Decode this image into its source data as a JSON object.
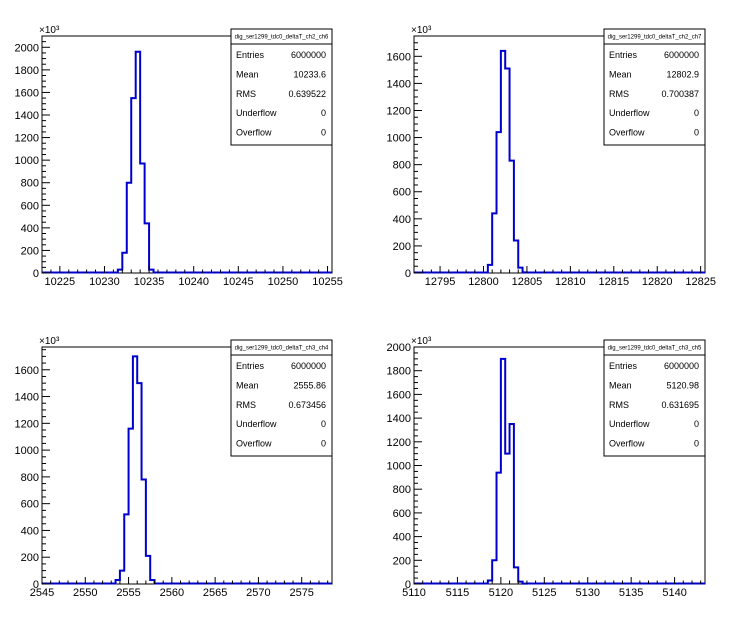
{
  "chart_data": [
    {
      "type": "histogram",
      "stats_title": "dig_ser1299_tdc0_deltaT_ch2_ch6",
      "stats": [
        {
          "label": "Entries",
          "value": "6000000"
        },
        {
          "label": "Mean",
          "value": "10233.6"
        },
        {
          "label": "RMS",
          "value": "0.639522"
        },
        {
          "label": "Underflow",
          "value": "0"
        },
        {
          "label": "Overflow",
          "value": "0"
        }
      ],
      "xlim": [
        10223,
        10255.5
      ],
      "ylim": [
        0,
        2100
      ],
      "y_multiplier_label": "×10³",
      "x_ticks": [
        10225,
        10230,
        10235,
        10240,
        10245,
        10250,
        10255
      ],
      "x_tick_labels": [
        "10225",
        "10230",
        "10235",
        "10240",
        "10245",
        "10250",
        "10255"
      ],
      "y_ticks": [
        0,
        200,
        400,
        600,
        800,
        1000,
        1200,
        1400,
        1600,
        1800,
        2000
      ],
      "y_tick_labels": [
        "0",
        "200",
        "400",
        "600",
        "800",
        "1000",
        "1200",
        "1400",
        "1600",
        "1800",
        "2000"
      ],
      "bin_edges": [
        10231.5,
        10232.0,
        10232.5,
        10233.0,
        10233.5,
        10234.0,
        10234.5,
        10235.0,
        10235.5
      ],
      "bin_values": [
        30,
        180,
        800,
        1550,
        1960,
        970,
        440,
        30
      ],
      "color": "#0000cc"
    },
    {
      "type": "histogram",
      "stats_title": "dig_ser1299_tdc0_deltaT_ch2_ch7",
      "stats": [
        {
          "label": "Entries",
          "value": "6000000"
        },
        {
          "label": "Mean",
          "value": "12802.9"
        },
        {
          "label": "RMS",
          "value": "0.700387"
        },
        {
          "label": "Underflow",
          "value": "0"
        },
        {
          "label": "Overflow",
          "value": "0"
        }
      ],
      "xlim": [
        12792,
        12825.5
      ],
      "ylim": [
        0,
        1750
      ],
      "y_multiplier_label": "×10³",
      "x_ticks": [
        12795,
        12800,
        12805,
        12810,
        12815,
        12820,
        12825
      ],
      "x_tick_labels": [
        "12795",
        "12800",
        "12805",
        "12810",
        "12815",
        "12820",
        "12825"
      ],
      "y_ticks": [
        0,
        200,
        400,
        600,
        800,
        1000,
        1200,
        1400,
        1600
      ],
      "y_tick_labels": [
        "0",
        "200",
        "400",
        "600",
        "800",
        "1000",
        "1200",
        "1400",
        "1600"
      ],
      "bin_edges": [
        12800.5,
        12801.0,
        12801.5,
        12802.0,
        12802.5,
        12803.0,
        12803.5,
        12804.0,
        12804.5,
        12805.0
      ],
      "bin_values": [
        60,
        440,
        1040,
        1640,
        1510,
        830,
        240,
        40,
        5
      ],
      "color": "#0000cc"
    },
    {
      "type": "histogram",
      "stats_title": "dig_ser1299_tdc0_deltaT_ch3_ch4",
      "stats": [
        {
          "label": "Entries",
          "value": "6000000"
        },
        {
          "label": "Mean",
          "value": "2555.86"
        },
        {
          "label": "RMS",
          "value": "0.673456"
        },
        {
          "label": "Underflow",
          "value": "0"
        },
        {
          "label": "Overflow",
          "value": "0"
        }
      ],
      "xlim": [
        2545,
        2578.5
      ],
      "ylim": [
        0,
        1770
      ],
      "y_multiplier_label": "×10³",
      "x_ticks": [
        2545,
        2550,
        2555,
        2560,
        2565,
        2570,
        2575
      ],
      "x_tick_labels": [
        "2545",
        "2550",
        "2555",
        "2560",
        "2565",
        "2570",
        "2575"
      ],
      "y_ticks": [
        0,
        200,
        400,
        600,
        800,
        1000,
        1200,
        1400,
        1600
      ],
      "y_tick_labels": [
        "0",
        "200",
        "400",
        "600",
        "800",
        "1000",
        "1200",
        "1400",
        "1600"
      ],
      "bin_edges": [
        2553.5,
        2554.0,
        2554.5,
        2555.0,
        2555.5,
        2556.0,
        2556.5,
        2557.0,
        2557.5,
        2558.0
      ],
      "bin_values": [
        30,
        100,
        520,
        1160,
        1700,
        1500,
        780,
        210,
        30
      ],
      "color": "#0000cc"
    },
    {
      "type": "histogram",
      "stats_title": "dig_ser1299_tdc0_deltaT_ch3_ch5",
      "stats": [
        {
          "label": "Entries",
          "value": "6000000"
        },
        {
          "label": "Mean",
          "value": "5120.98"
        },
        {
          "label": "RMS",
          "value": "0.631695"
        },
        {
          "label": "Underflow",
          "value": "0"
        },
        {
          "label": "Overflow",
          "value": "0"
        }
      ],
      "xlim": [
        5110,
        5143.5
      ],
      "ylim": [
        0,
        2000
      ],
      "y_multiplier_label": "×10³",
      "x_ticks": [
        5110,
        5115,
        5120,
        5125,
        5130,
        5135,
        5140
      ],
      "x_tick_labels": [
        "5110",
        "5115",
        "5120",
        "5125",
        "5130",
        "5135",
        "5140"
      ],
      "y_ticks": [
        0,
        200,
        400,
        600,
        800,
        1000,
        1200,
        1400,
        1600,
        1800,
        2000
      ],
      "y_tick_labels": [
        "0",
        "200",
        "400",
        "600",
        "800",
        "1000",
        "1200",
        "1400",
        "1600",
        "1800",
        "2000"
      ],
      "bin_edges": [
        5118.5,
        5119.0,
        5119.5,
        5120.0,
        5120.5,
        5121.0,
        5121.5,
        5122.0,
        5122.5,
        5123.0
      ],
      "bin_values": [
        30,
        200,
        940,
        1900,
        1100,
        1350,
        140,
        20,
        3
      ],
      "color": "#0000cc"
    }
  ]
}
